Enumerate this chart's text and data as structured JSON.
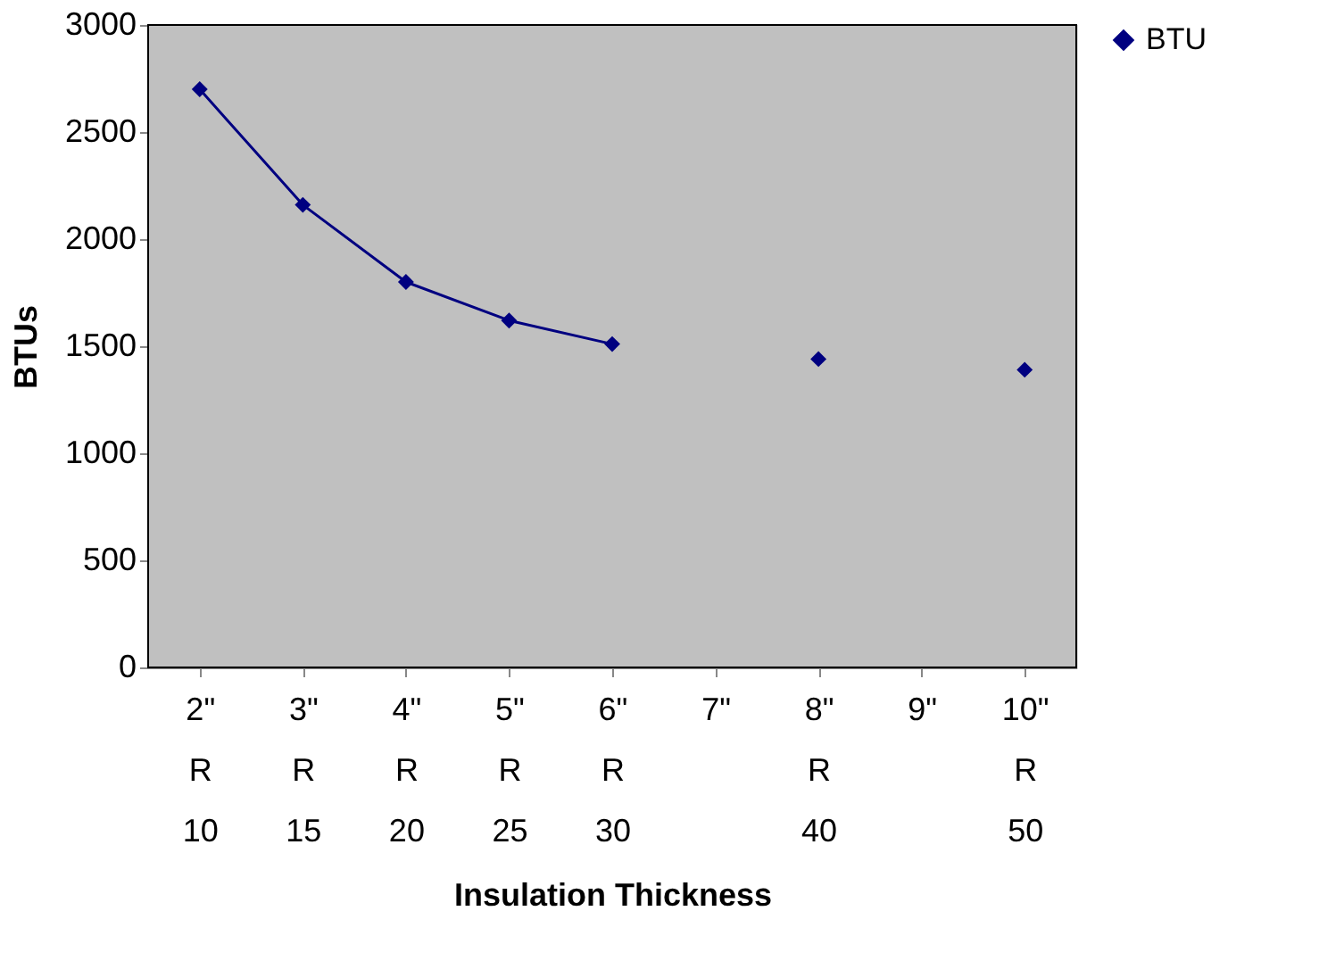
{
  "chart_data": {
    "type": "line",
    "xlabel": "Insulation Thickness",
    "ylabel": "BTUs",
    "categories": [
      "2\"\nR\n10",
      "3\"\nR\n15",
      "4\"\nR\n20",
      "5\"\nR\n25",
      "6\"\nR\n30",
      "7\"",
      "8\"\nR\n40",
      "9\"",
      "10\"\nR\n50"
    ],
    "series": [
      {
        "name": "BTU",
        "color": "#000080",
        "values": [
          2700,
          2160,
          1800,
          1620,
          1510,
          null,
          1440,
          null,
          1390
        ]
      }
    ],
    "ylim": [
      0,
      3000
    ],
    "yticks": [
      0,
      500,
      1000,
      1500,
      2000,
      2500,
      3000
    ],
    "legend": "right",
    "marker": "diamond",
    "line_style": "solid"
  }
}
